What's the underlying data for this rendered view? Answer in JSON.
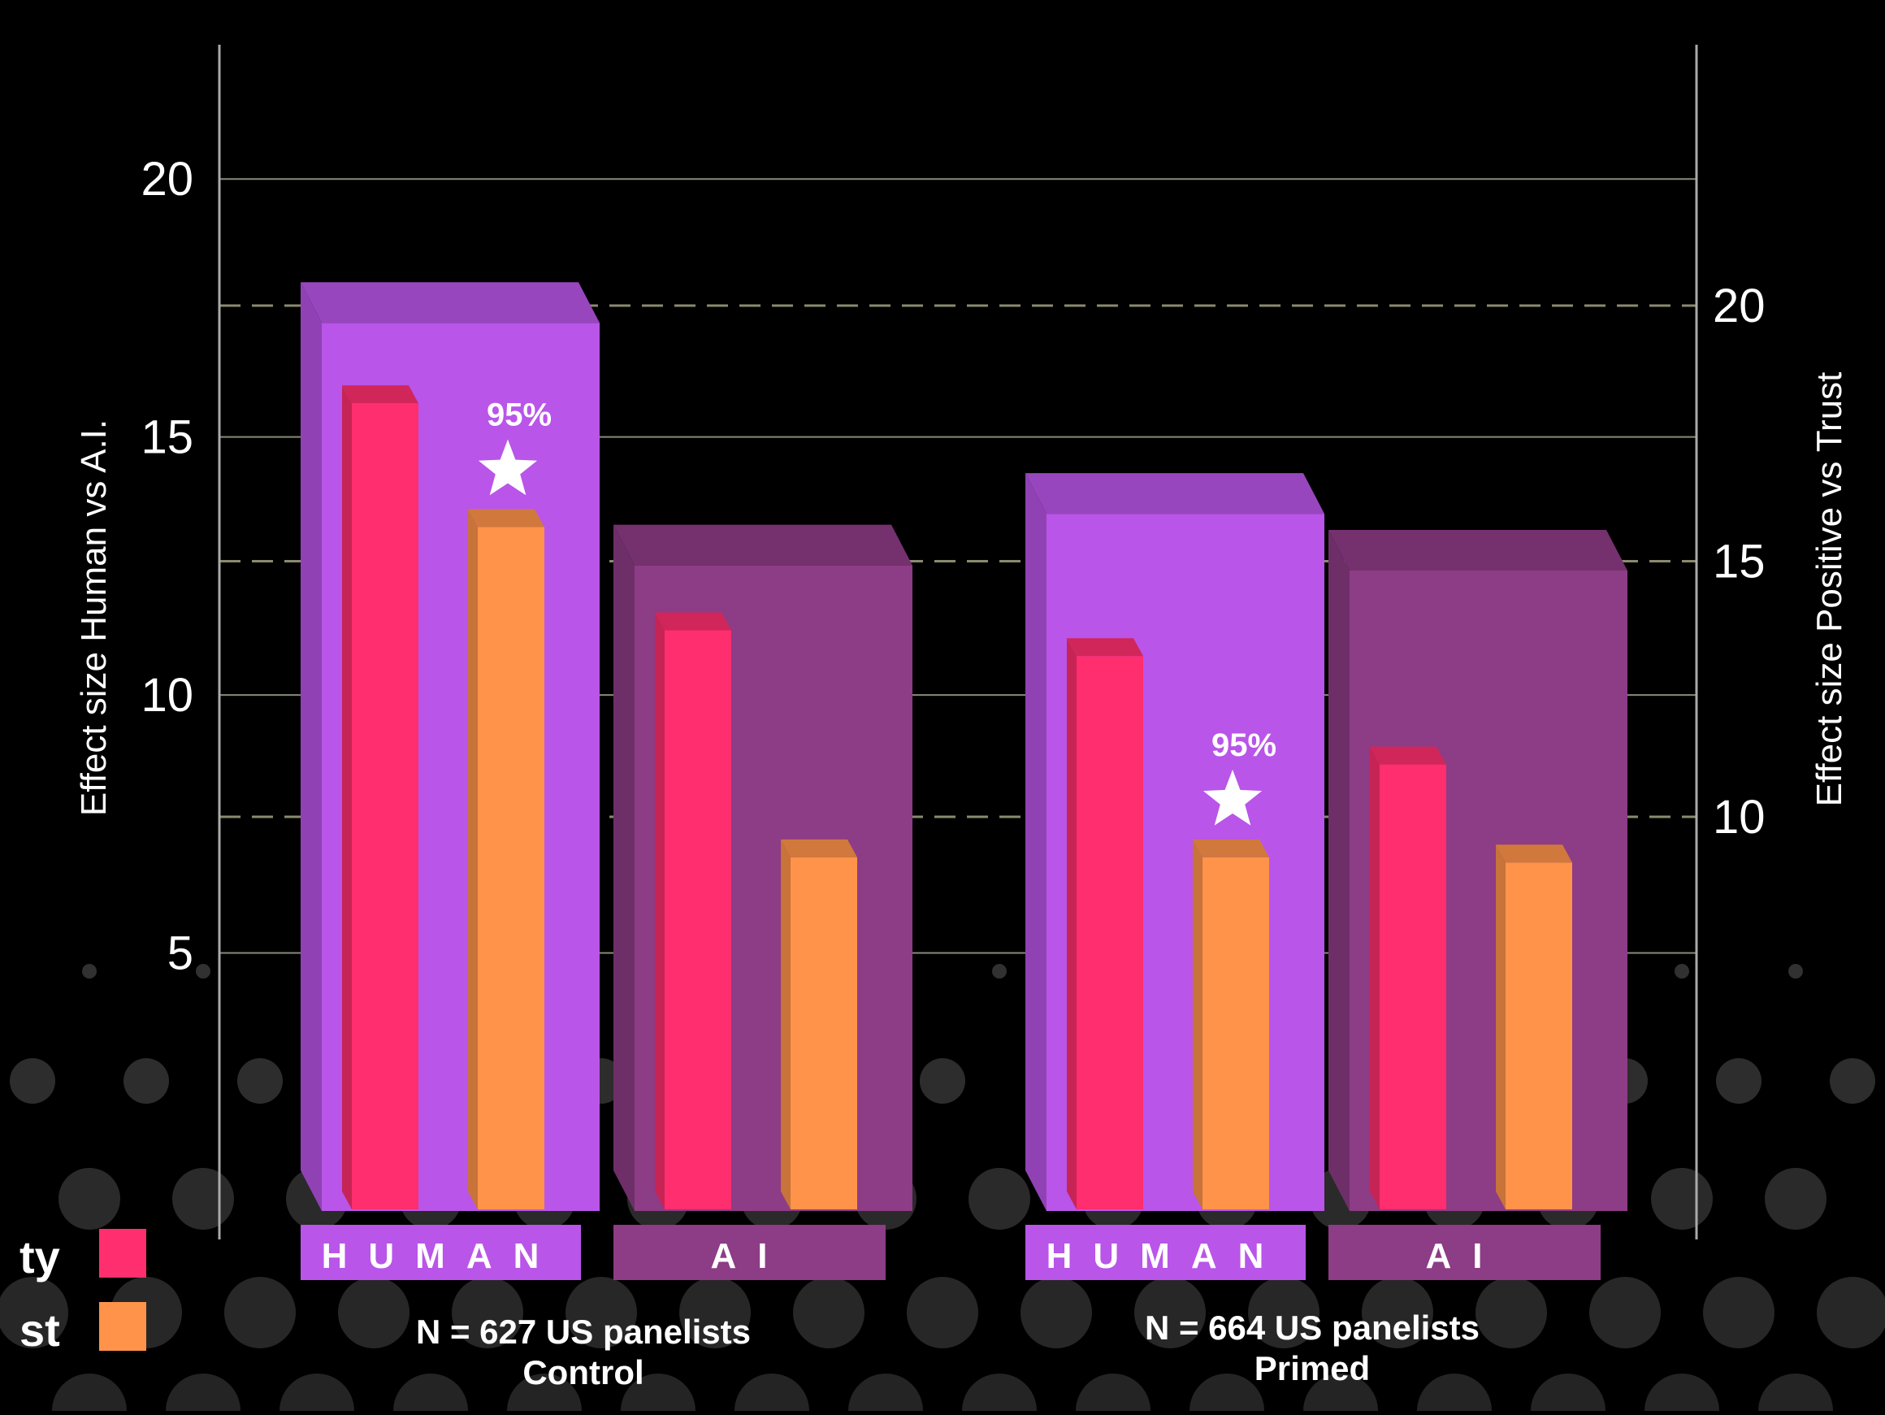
{
  "chart_data": {
    "type": "bar",
    "left_axis": {
      "title": "Effect size Human vs A.I.",
      "ticks": [
        "5",
        "10",
        "15",
        "20"
      ],
      "tick_values": [
        5,
        10,
        15,
        20
      ],
      "ylim": [
        0,
        21.5
      ]
    },
    "right_axis": {
      "title": "Effect size Positive vs Trust",
      "ticks": [
        "10",
        "15",
        "20"
      ],
      "tick_values": [
        10,
        15,
        20
      ]
    },
    "legend": {
      "position": "bottom-left",
      "items": [
        {
          "label": "ty",
          "color": "#ff2e6e"
        },
        {
          "label": "st",
          "color": "#ff934a"
        }
      ]
    },
    "groups": [
      {
        "caption_line1": "N = 627 US panelists",
        "caption_line2": "Control",
        "bars": [
          {
            "label": "HUMAN",
            "value": 18.0,
            "color": "#b955e8",
            "values": [
              16.0,
              13.6
            ],
            "annotation_index": 1
          },
          {
            "label": "AI",
            "value": 13.3,
            "color": "#8d3c86",
            "values": [
              11.6,
              7.2
            ]
          }
        ]
      },
      {
        "caption_line1": "N = 664 US panelists",
        "caption_line2": "Primed",
        "bars": [
          {
            "label": "HUMAN",
            "value": 14.3,
            "color": "#b955e8",
            "values": [
              11.1,
              7.2
            ],
            "annotation_index": 1
          },
          {
            "label": "AI",
            "value": 13.2,
            "color": "#8d3c86",
            "values": [
              9.0,
              7.1
            ]
          }
        ]
      }
    ],
    "annotation_text": "95%",
    "series_colors": [
      "#ff2e6e",
      "#ff934a"
    ],
    "grid": true
  }
}
